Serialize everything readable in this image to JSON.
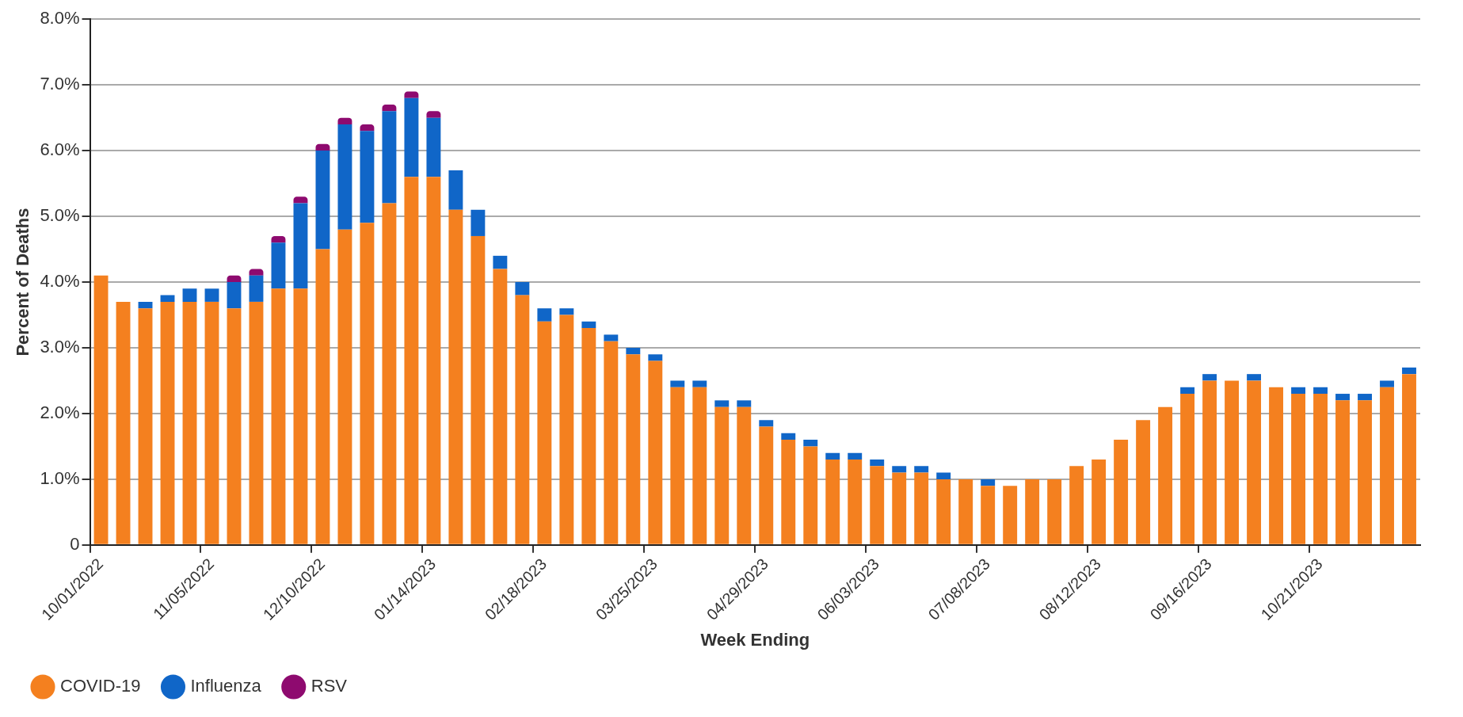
{
  "chart_data": {
    "type": "bar",
    "stacked": true,
    "xlabel": "Week Ending",
    "ylabel": "Percent of Deaths",
    "categories": [
      "10/01/2022",
      null,
      null,
      null,
      null,
      "11/05/2022",
      null,
      null,
      null,
      null,
      "12/10/2022",
      null,
      null,
      null,
      null,
      "01/14/2023",
      null,
      null,
      null,
      null,
      "02/18/2023",
      null,
      null,
      null,
      null,
      "03/25/2023",
      null,
      null,
      null,
      null,
      "04/29/2023",
      null,
      null,
      null,
      null,
      "06/03/2023",
      null,
      null,
      null,
      null,
      "07/08/2023",
      null,
      null,
      null,
      null,
      "08/12/2023",
      null,
      null,
      null,
      null,
      "09/16/2023",
      null,
      null,
      null,
      null,
      "10/21/2023",
      null,
      null,
      null,
      null
    ],
    "series": [
      {
        "name": "COVID-19",
        "color": "#f4801f",
        "values": [
          4.1,
          3.7,
          3.6,
          3.7,
          3.7,
          3.7,
          3.6,
          3.7,
          3.9,
          3.9,
          4.5,
          4.8,
          4.9,
          5.2,
          5.6,
          5.6,
          5.1,
          4.7,
          4.2,
          3.8,
          3.4,
          3.5,
          3.3,
          3.1,
          2.9,
          2.8,
          2.4,
          2.4,
          2.1,
          2.1,
          1.8,
          1.6,
          1.5,
          1.3,
          1.3,
          1.2,
          1.1,
          1.1,
          1.0,
          1.0,
          0.9,
          0.9,
          1.0,
          1.0,
          1.2,
          1.3,
          1.6,
          1.9,
          2.1,
          2.3,
          2.5,
          2.5,
          2.5,
          2.4,
          2.3,
          2.3,
          2.2,
          2.2,
          2.4,
          2.6
        ]
      },
      {
        "name": "Influenza",
        "color": "#1066c8",
        "values": [
          0,
          0,
          0.1,
          0.1,
          0.2,
          0.2,
          0.4,
          0.4,
          0.7,
          1.3,
          1.5,
          1.6,
          1.4,
          1.4,
          1.2,
          0.9,
          0.6,
          0.4,
          0.2,
          0.2,
          0.2,
          0.1,
          0.1,
          0.1,
          0.1,
          0.1,
          0.1,
          0.1,
          0.1,
          0.1,
          0.1,
          0.1,
          0.1,
          0.1,
          0.1,
          0.1,
          0.1,
          0.1,
          0.1,
          0,
          0.1,
          0,
          0,
          0,
          0,
          0,
          0,
          0,
          0,
          0.1,
          0.1,
          0,
          0.1,
          0,
          0.1,
          0.1,
          0.1,
          0.1,
          0.1,
          0.1
        ]
      },
      {
        "name": "RSV",
        "color": "#8e0a6f",
        "values": [
          0,
          0,
          0,
          0,
          0,
          0,
          0.1,
          0.1,
          0.1,
          0.1,
          0.1,
          0.1,
          0.1,
          0.1,
          0.1,
          0.1,
          0,
          0,
          0,
          0,
          0,
          0,
          0,
          0,
          0,
          0,
          0,
          0,
          0,
          0,
          0,
          0,
          0,
          0,
          0,
          0,
          0,
          0,
          0,
          0,
          0,
          0,
          0,
          0,
          0,
          0,
          0,
          0,
          0,
          0,
          0,
          0,
          0,
          0,
          0,
          0,
          0,
          0,
          0,
          0
        ]
      }
    ],
    "ylim": [
      0,
      8
    ],
    "yticks": [
      0,
      {
        "value": 1,
        "label": "1.0%"
      },
      {
        "value": 2,
        "label": "2.0%"
      },
      {
        "value": 3,
        "label": "3.0%"
      },
      {
        "value": 4,
        "label": "4.0%"
      },
      {
        "value": 5,
        "label": "5.0%"
      },
      {
        "value": 6,
        "label": "6.0%"
      },
      {
        "value": 7,
        "label": "7.0%"
      },
      {
        "value": 8,
        "label": "8.0%"
      }
    ],
    "grid": "y",
    "legend": "bottom"
  }
}
